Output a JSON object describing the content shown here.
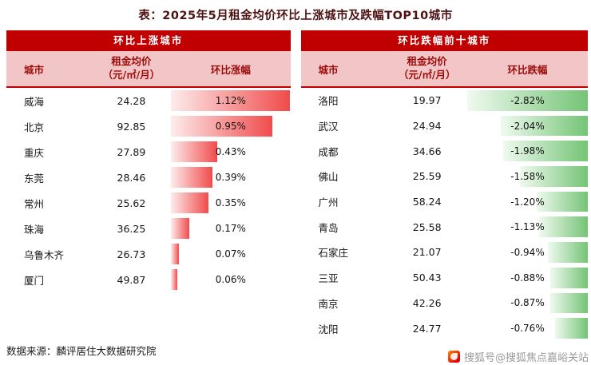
{
  "title": "表：2025年5月租金均价环比上涨城市及跌幅TOP10城市",
  "source": "数据来源：麟评居住大数据研究院",
  "watermark": {
    "text": "搜狐号@搜狐焦点嘉峪关站",
    "icon": "sohu-logo"
  },
  "colors": {
    "header_band": "#c00000",
    "subheader_bg": "#f2c6c6",
    "subheader_text": "#9c0b0b",
    "bar_up_start": "#fdecec",
    "bar_up_end": "#f14b4b",
    "bar_down_start": "#effaef",
    "bar_down_end": "#74c476",
    "title_text": "#4d1111",
    "watermark_text": "#9b9b9b"
  },
  "chart_data": [
    {
      "type": "table",
      "header": "环比上涨城市",
      "col_city": "城市",
      "col_price_line1": "租金均价",
      "col_price_line2": "（元/㎡/月）",
      "col_change": "环比涨幅",
      "bar_direction": "up",
      "max_pct": 1.12,
      "rows": [
        {
          "city": "威海",
          "price": "24.28",
          "change": "1.12%",
          "pct": 1.12
        },
        {
          "city": "北京",
          "price": "92.85",
          "change": "0.95%",
          "pct": 0.95
        },
        {
          "city": "重庆",
          "price": "27.89",
          "change": "0.43%",
          "pct": 0.43
        },
        {
          "city": "东莞",
          "price": "28.46",
          "change": "0.39%",
          "pct": 0.39
        },
        {
          "city": "常州",
          "price": "25.62",
          "change": "0.35%",
          "pct": 0.35
        },
        {
          "city": "珠海",
          "price": "36.25",
          "change": "0.17%",
          "pct": 0.17
        },
        {
          "city": "乌鲁木齐",
          "price": "26.73",
          "change": "0.07%",
          "pct": 0.07
        },
        {
          "city": "厦门",
          "price": "49.87",
          "change": "0.06%",
          "pct": 0.06
        }
      ]
    },
    {
      "type": "table",
      "header": "环比跌幅前十城市",
      "col_city": "城市",
      "col_price_line1": "租金均价",
      "col_price_line2": "（元/㎡/月）",
      "col_change": "环比跌幅",
      "bar_direction": "down",
      "max_pct": 2.82,
      "rows": [
        {
          "city": "洛阳",
          "price": "19.97",
          "change": "-2.82%",
          "pct": 2.82
        },
        {
          "city": "武汉",
          "price": "24.94",
          "change": "-2.04%",
          "pct": 2.04
        },
        {
          "city": "成都",
          "price": "34.66",
          "change": "-1.98%",
          "pct": 1.98
        },
        {
          "city": "佛山",
          "price": "25.59",
          "change": "-1.58%",
          "pct": 1.58
        },
        {
          "city": "广州",
          "price": "58.24",
          "change": "-1.20%",
          "pct": 1.2
        },
        {
          "city": "青岛",
          "price": "25.58",
          "change": "-1.13%",
          "pct": 1.13
        },
        {
          "city": "石家庄",
          "price": "21.07",
          "change": "-0.94%",
          "pct": 0.94
        },
        {
          "city": "三亚",
          "price": "50.43",
          "change": "-0.88%",
          "pct": 0.88
        },
        {
          "city": "南京",
          "price": "42.26",
          "change": "-0.87%",
          "pct": 0.87
        },
        {
          "city": "沈阳",
          "price": "24.77",
          "change": "-0.76%",
          "pct": 0.76
        }
      ]
    }
  ]
}
